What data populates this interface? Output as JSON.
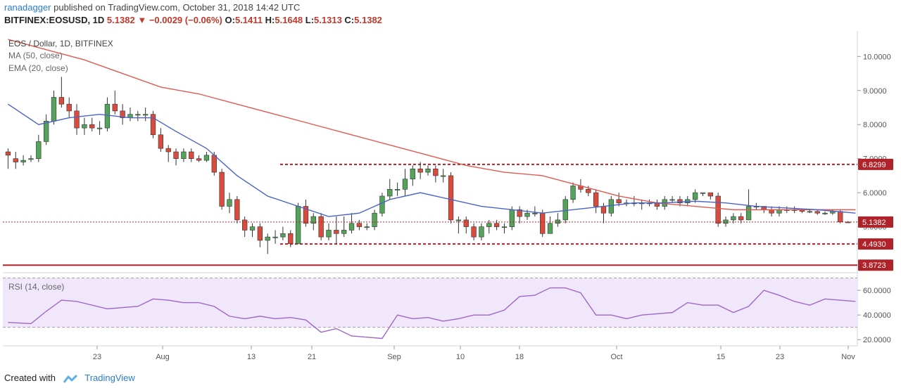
{
  "header": {
    "author": "ranadagger",
    "published_text": "published on TradingView.com, October 31, 2018 14:42 UTC",
    "symbol": "BITFINEX:EOSUSD, 1D",
    "last": "5.1382",
    "down_arrow": "▼",
    "change": "−0.0029 (−0.06%)",
    "ohlc_label_o": "O:",
    "ohlc_o": "5.1411",
    "ohlc_label_h": "H:",
    "ohlc_h": "5.1648",
    "ohlc_label_l": "L:",
    "ohlc_l": "5.1313",
    "ohlc_label_c": "C:",
    "ohlc_c": "5.1382"
  },
  "legend": {
    "title": "EOS / Dollar, 1D, BITFINEX",
    "ma": "MA (50, close)",
    "ema": "EMA (20, close)",
    "rsi": "RSI (14, close)"
  },
  "footer": {
    "created_with": "Created with",
    "brand": "TradingView"
  },
  "colors": {
    "up": "#53a35a",
    "down": "#d94c3d",
    "ma": "#e05a52",
    "ema": "#4a63c8",
    "level": "#b0222a",
    "rsi_line": "#a066c8",
    "rsi_band": "#f1e7fb",
    "price_tag": "#b0222a"
  },
  "chart_data": [
    {
      "type": "candlestick",
      "title": "EOS / Dollar, 1D, BITFINEX",
      "ylim": [
        3.65,
        10.75
      ],
      "y_ticks": [
        "10.0000",
        "9.0000",
        "8.0000",
        "7.0000",
        "6.0000",
        "5.0000"
      ],
      "x_ticks": [
        "23",
        "Aug",
        "13",
        "21",
        "Sep",
        "10",
        "18",
        "Oct",
        "15",
        "23",
        "Nov"
      ],
      "levels": [
        {
          "label": "6.8299",
          "value": 6.8299,
          "style": "dashed"
        },
        {
          "label": "4.4930",
          "value": 4.493,
          "style": "dashed"
        },
        {
          "label": "3.8723",
          "value": 3.8723,
          "style": "solid"
        }
      ],
      "last_price": {
        "label": "5.1382",
        "value": 5.1382
      },
      "candles": [
        [
          7.2,
          7.1,
          7.3,
          6.7
        ],
        [
          7.0,
          6.9,
          7.2,
          6.7
        ],
        [
          6.9,
          6.95,
          7.1,
          6.8
        ],
        [
          7.0,
          7.0,
          7.1,
          6.9
        ],
        [
          7.0,
          7.5,
          7.7,
          6.9
        ],
        [
          7.5,
          8.1,
          8.3,
          7.4
        ],
        [
          8.1,
          8.8,
          9.0,
          8.0
        ],
        [
          8.8,
          8.6,
          9.4,
          8.5
        ],
        [
          8.6,
          8.4,
          8.8,
          8.2
        ],
        [
          8.4,
          7.9,
          8.6,
          7.7
        ],
        [
          7.9,
          8.0,
          8.2,
          7.7
        ],
        [
          8.0,
          7.9,
          8.2,
          7.8
        ],
        [
          7.9,
          7.9,
          8.1,
          7.7
        ],
        [
          7.9,
          8.6,
          8.8,
          7.8
        ],
        [
          8.6,
          8.4,
          9.0,
          8.3
        ],
        [
          8.4,
          8.2,
          8.6,
          8.0
        ],
        [
          8.2,
          8.3,
          8.5,
          8.1
        ],
        [
          8.3,
          8.3,
          8.4,
          8.1
        ],
        [
          8.3,
          8.3,
          8.5,
          8.1
        ],
        [
          8.3,
          7.7,
          8.4,
          7.6
        ],
        [
          7.7,
          7.3,
          7.9,
          7.2
        ],
        [
          7.3,
          7.2,
          7.4,
          6.9
        ],
        [
          7.2,
          7.0,
          7.3,
          6.8
        ],
        [
          7.0,
          7.2,
          7.3,
          6.9
        ],
        [
          7.2,
          7.0,
          7.3,
          6.9
        ],
        [
          7.0,
          6.95,
          7.1,
          6.9
        ],
        [
          6.95,
          7.1,
          7.2,
          6.9
        ],
        [
          7.1,
          6.6,
          7.2,
          6.5
        ],
        [
          6.6,
          5.6,
          6.7,
          5.5
        ],
        [
          5.6,
          5.8,
          6.0,
          5.4
        ],
        [
          5.8,
          5.2,
          5.9,
          5.1
        ],
        [
          5.2,
          4.9,
          5.3,
          4.7
        ],
        [
          4.9,
          5.0,
          5.1,
          4.7
        ],
        [
          5.0,
          4.6,
          5.1,
          4.4
        ],
        [
          4.6,
          4.7,
          4.8,
          4.2
        ],
        [
          4.7,
          4.7,
          4.9,
          4.5
        ],
        [
          4.7,
          4.8,
          5.0,
          4.6
        ],
        [
          4.8,
          4.5,
          4.9,
          4.4
        ],
        [
          4.5,
          5.6,
          5.7,
          4.5
        ],
        [
          5.6,
          5.1,
          5.8,
          5.0
        ],
        [
          5.1,
          5.3,
          5.4,
          4.9
        ],
        [
          5.3,
          4.7,
          5.4,
          4.6
        ],
        [
          4.7,
          4.9,
          5.1,
          4.6
        ],
        [
          4.9,
          4.8,
          5.3,
          4.5
        ],
        [
          4.8,
          4.9,
          5.3,
          4.7
        ],
        [
          4.9,
          5.1,
          5.4,
          4.8
        ],
        [
          5.1,
          5.0,
          5.2,
          4.9
        ],
        [
          5.0,
          5.0,
          5.1,
          4.9
        ],
        [
          5.0,
          5.4,
          5.5,
          4.9
        ],
        [
          5.4,
          5.9,
          6.0,
          5.3
        ],
        [
          5.9,
          6.1,
          6.4,
          5.8
        ],
        [
          6.1,
          6.1,
          6.3,
          5.9
        ],
        [
          6.1,
          6.4,
          6.7,
          5.9
        ],
        [
          6.4,
          6.7,
          6.8,
          6.2
        ],
        [
          6.7,
          6.6,
          6.9,
          6.4
        ],
        [
          6.6,
          6.7,
          6.8,
          6.5
        ],
        [
          6.7,
          6.5,
          6.8,
          6.3
        ],
        [
          6.5,
          6.5,
          6.7,
          6.3
        ],
        [
          6.5,
          5.2,
          6.6,
          5.1
        ],
        [
          5.2,
          5.2,
          5.3,
          4.8
        ],
        [
          5.2,
          5.0,
          5.3,
          4.8
        ],
        [
          5.0,
          4.7,
          5.1,
          4.6
        ],
        [
          4.7,
          5.0,
          5.1,
          4.6
        ],
        [
          5.0,
          5.1,
          5.2,
          4.8
        ],
        [
          5.1,
          5.0,
          5.2,
          4.9
        ],
        [
          5.0,
          5.0,
          5.1,
          4.8
        ],
        [
          5.0,
          5.5,
          5.6,
          4.9
        ],
        [
          5.5,
          5.3,
          5.6,
          5.1
        ],
        [
          5.3,
          5.4,
          5.5,
          5.2
        ],
        [
          5.4,
          5.4,
          5.6,
          5.3
        ],
        [
          5.4,
          4.8,
          5.5,
          4.7
        ],
        [
          4.8,
          5.1,
          5.3,
          4.8
        ],
        [
          5.1,
          5.2,
          5.4,
          5.0
        ],
        [
          5.2,
          5.8,
          5.9,
          5.1
        ],
        [
          5.8,
          6.2,
          6.3,
          5.7
        ],
        [
          6.2,
          6.1,
          6.4,
          6.0
        ],
        [
          6.1,
          6.0,
          6.2,
          5.9
        ],
        [
          6.0,
          5.6,
          6.1,
          5.4
        ],
        [
          5.6,
          5.4,
          5.7,
          5.1
        ],
        [
          5.4,
          5.8,
          5.9,
          5.3
        ],
        [
          5.8,
          5.7,
          6.0,
          5.6
        ],
        [
          5.7,
          5.7,
          5.8,
          5.6
        ],
        [
          5.7,
          5.7,
          5.9,
          5.6
        ],
        [
          5.7,
          5.7,
          5.8,
          5.5
        ],
        [
          5.7,
          5.7,
          5.8,
          5.6
        ],
        [
          5.7,
          5.6,
          5.8,
          5.5
        ],
        [
          5.6,
          5.8,
          5.9,
          5.5
        ],
        [
          5.8,
          5.8,
          5.9,
          5.7
        ],
        [
          5.8,
          5.7,
          5.9,
          5.6
        ],
        [
          5.7,
          5.8,
          5.9,
          5.6
        ],
        [
          5.8,
          6.0,
          6.1,
          5.7
        ],
        [
          6.0,
          6.0,
          6.0,
          5.9
        ],
        [
          6.0,
          5.9,
          6.0,
          5.8
        ],
        [
          5.9,
          5.1,
          6.0,
          5.0
        ],
        [
          5.1,
          5.2,
          5.3,
          5.0
        ],
        [
          5.2,
          5.3,
          5.4,
          5.1
        ],
        [
          5.3,
          5.2,
          5.4,
          5.1
        ],
        [
          5.2,
          5.6,
          6.1,
          5.2
        ],
        [
          5.6,
          5.6,
          5.7,
          5.5
        ],
        [
          5.6,
          5.5,
          5.6,
          5.4
        ],
        [
          5.5,
          5.4,
          5.6,
          5.3
        ],
        [
          5.4,
          5.5,
          5.6,
          5.3
        ],
        [
          5.5,
          5.5,
          5.6,
          5.4
        ],
        [
          5.5,
          5.5,
          5.6,
          5.4
        ],
        [
          5.5,
          5.45,
          5.5,
          5.4
        ],
        [
          5.45,
          5.45,
          5.5,
          5.4
        ],
        [
          5.45,
          5.4,
          5.5,
          5.35
        ],
        [
          5.4,
          5.4,
          5.45,
          5.35
        ],
        [
          5.4,
          5.45,
          5.5,
          5.35
        ],
        [
          5.45,
          5.14,
          5.5,
          5.1
        ],
        [
          5.14,
          5.1382,
          5.1648,
          5.1313
        ]
      ],
      "ma50": [
        [
          0,
          10.5
        ],
        [
          5,
          10.2
        ],
        [
          10,
          9.9
        ],
        [
          15,
          9.5
        ],
        [
          20,
          9.1
        ],
        [
          25,
          8.9
        ],
        [
          30,
          8.6
        ],
        [
          35,
          8.3
        ],
        [
          40,
          8.0
        ],
        [
          45,
          7.7
        ],
        [
          50,
          7.4
        ],
        [
          55,
          7.1
        ],
        [
          60,
          6.8
        ],
        [
          65,
          6.6
        ],
        [
          70,
          6.5
        ],
        [
          75,
          6.2
        ],
        [
          80,
          5.9
        ],
        [
          85,
          5.7
        ],
        [
          90,
          5.6
        ],
        [
          95,
          5.5
        ],
        [
          100,
          5.5
        ],
        [
          105,
          5.5
        ],
        [
          111,
          5.5
        ]
      ],
      "ema20": [
        [
          0,
          8.6
        ],
        [
          4,
          8.0
        ],
        [
          8,
          8.2
        ],
        [
          12,
          8.3
        ],
        [
          16,
          8.2
        ],
        [
          19,
          8.2
        ],
        [
          22,
          7.8
        ],
        [
          26,
          7.3
        ],
        [
          30,
          6.5
        ],
        [
          34,
          5.9
        ],
        [
          38,
          5.6
        ],
        [
          42,
          5.3
        ],
        [
          46,
          5.4
        ],
        [
          50,
          5.8
        ],
        [
          54,
          6.0
        ],
        [
          58,
          5.8
        ],
        [
          62,
          5.6
        ],
        [
          66,
          5.5
        ],
        [
          70,
          5.4
        ],
        [
          74,
          5.5
        ],
        [
          78,
          5.6
        ],
        [
          82,
          5.7
        ],
        [
          86,
          5.7
        ],
        [
          90,
          5.75
        ],
        [
          94,
          5.7
        ],
        [
          98,
          5.6
        ],
        [
          102,
          5.55
        ],
        [
          106,
          5.5
        ],
        [
          111,
          5.4
        ]
      ]
    },
    {
      "type": "line",
      "title": "RSI (14, close)",
      "ylim": [
        15,
        72
      ],
      "y_ticks": [
        "60.0000",
        "40.0000",
        "20.0000"
      ],
      "band": [
        30,
        70
      ],
      "rsi": [
        [
          0,
          34
        ],
        [
          3,
          33
        ],
        [
          5,
          43
        ],
        [
          7,
          52
        ],
        [
          9,
          51
        ],
        [
          11,
          48
        ],
        [
          13,
          45
        ],
        [
          15,
          46
        ],
        [
          17,
          47
        ],
        [
          19,
          53
        ],
        [
          21,
          52
        ],
        [
          23,
          50
        ],
        [
          25,
          50
        ],
        [
          27,
          47
        ],
        [
          29,
          39
        ],
        [
          31,
          37
        ],
        [
          33,
          39
        ],
        [
          35,
          37
        ],
        [
          37,
          38
        ],
        [
          39,
          36
        ],
        [
          41,
          26
        ],
        [
          43,
          29
        ],
        [
          45,
          23
        ],
        [
          47,
          22
        ],
        [
          49,
          21
        ],
        [
          51,
          40
        ],
        [
          53,
          37
        ],
        [
          55,
          38
        ],
        [
          57,
          35
        ],
        [
          59,
          37
        ],
        [
          61,
          40
        ],
        [
          63,
          40
        ],
        [
          65,
          44
        ],
        [
          67,
          55
        ],
        [
          69,
          56
        ],
        [
          71,
          62
        ],
        [
          73,
          62
        ],
        [
          75,
          58
        ],
        [
          77,
          40
        ],
        [
          79,
          40
        ],
        [
          81,
          37
        ],
        [
          83,
          40
        ],
        [
          85,
          41
        ],
        [
          87,
          42
        ],
        [
          89,
          50
        ],
        [
          91,
          48
        ],
        [
          93,
          48
        ],
        [
          95,
          42
        ],
        [
          97,
          47
        ],
        [
          99,
          60
        ],
        [
          101,
          56
        ],
        [
          103,
          51
        ],
        [
          105,
          48
        ],
        [
          107,
          53
        ],
        [
          109,
          52
        ],
        [
          111,
          51
        ]
      ]
    }
  ]
}
